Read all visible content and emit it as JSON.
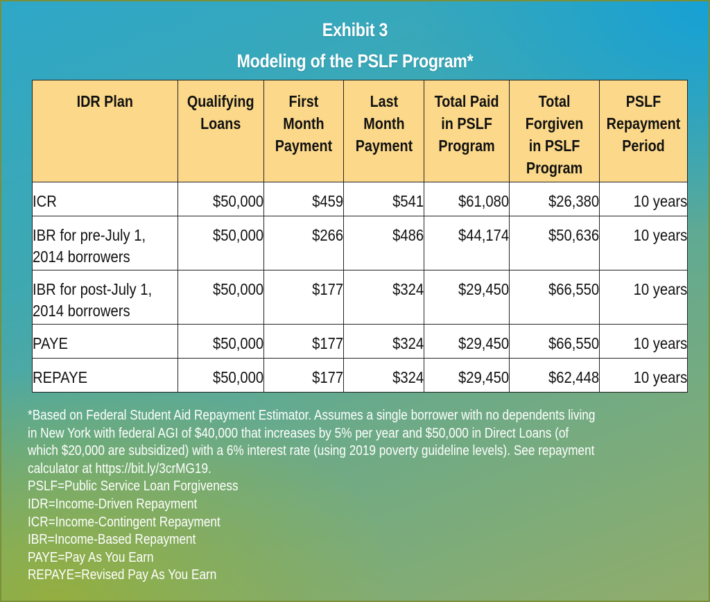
{
  "exhibit": {
    "label": "Exhibit 3",
    "title": "Modeling of the PSLF Program*"
  },
  "table": {
    "headers": [
      "IDR Plan",
      "Qualifying\nLoans",
      "First\nMonth\nPayment",
      "Last\nMonth\nPayment",
      "Total Paid\nin PSLF\nProgram",
      "Total\nForgiven\nin PSLF\nProgram",
      "PSLF\nRepayment\nPeriod"
    ],
    "rows": [
      {
        "plan": "ICR",
        "qualifying": "$50,000",
        "first": "$459",
        "last": "$541",
        "paid": "$61,080",
        "forgiven": "$26,380",
        "period": "10 years"
      },
      {
        "plan": "IBR for pre-July 1, 2014 borrowers",
        "qualifying": "$50,000",
        "first": "$266",
        "last": "$486",
        "paid": "$44,174",
        "forgiven": "$50,636",
        "period": "10 years"
      },
      {
        "plan": "IBR for post-July 1, 2014 borrowers",
        "qualifying": "$50,000",
        "first": "$177",
        "last": "$324",
        "paid": "$29,450",
        "forgiven": "$66,550",
        "period": "10 years"
      },
      {
        "plan": "PAYE",
        "qualifying": "$50,000",
        "first": "$177",
        "last": "$324",
        "paid": "$29,450",
        "forgiven": "$66,550",
        "period": "10 years"
      },
      {
        "plan": "REPAYE",
        "qualifying": "$50,000",
        "first": "$177",
        "last": "$324",
        "paid": "$29,450",
        "forgiven": "$62,448",
        "period": "10 years"
      }
    ]
  },
  "footnote": {
    "lines": [
      "*Based on Federal Student Aid Repayment Estimator. Assumes a single borrower with no dependents living",
      "in New York with federal AGI of $40,000 that increases by 5% per year and $50,000 in Direct Loans (of",
      "which $20,000 are subsidized) with a 6% interest rate (using 2019 poverty guideline levels). See repayment",
      "calculator at https://bit.ly/3crMG19."
    ]
  },
  "glossary": [
    "PSLF=Public Service Loan Forgiveness",
    "IDR=Income-Driven Repayment",
    "ICR=Income-Contingent Repayment",
    "IBR=Income-Based Repayment",
    "PAYE=Pay As You Earn",
    "REPAYE=Revised Pay As You Earn"
  ],
  "colors": {
    "header_fill": "#fcd98a",
    "title_text": "#ffffff",
    "gradient_top_right": "#14a0d7",
    "gradient_bottom_left": "#96af3c"
  }
}
